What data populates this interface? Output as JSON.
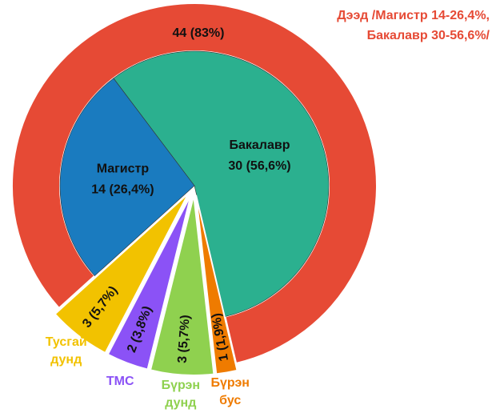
{
  "chart_data": {
    "type": "sunburst",
    "categories": [
      "Бакалавр",
      "Бүрэн бус",
      "Бүрэн дунд",
      "ТМС",
      "Тусгай дунд",
      "Магистр"
    ],
    "values": [
      30,
      1,
      3,
      2,
      3,
      14
    ],
    "value_labels": [
      "30 (56,6%)",
      "1 (1,9%)",
      "3 (5,7%)",
      "2 (3,8%)",
      "3 (5,7%)",
      "14 (26,4%)"
    ],
    "colors": [
      "#2bb08f",
      "#ef7b00",
      "#8fd14f",
      "#8b52f6",
      "#f2c200",
      "#1a7bbf"
    ],
    "outer": {
      "values": [
        44
      ],
      "value_labels": [
        "44 (83%)"
      ],
      "color": "#e64a35"
    },
    "annotation": [
      "Дээд /Магистр 14-26,4%,",
      "Бакалавр 30-56,6%/"
    ]
  }
}
